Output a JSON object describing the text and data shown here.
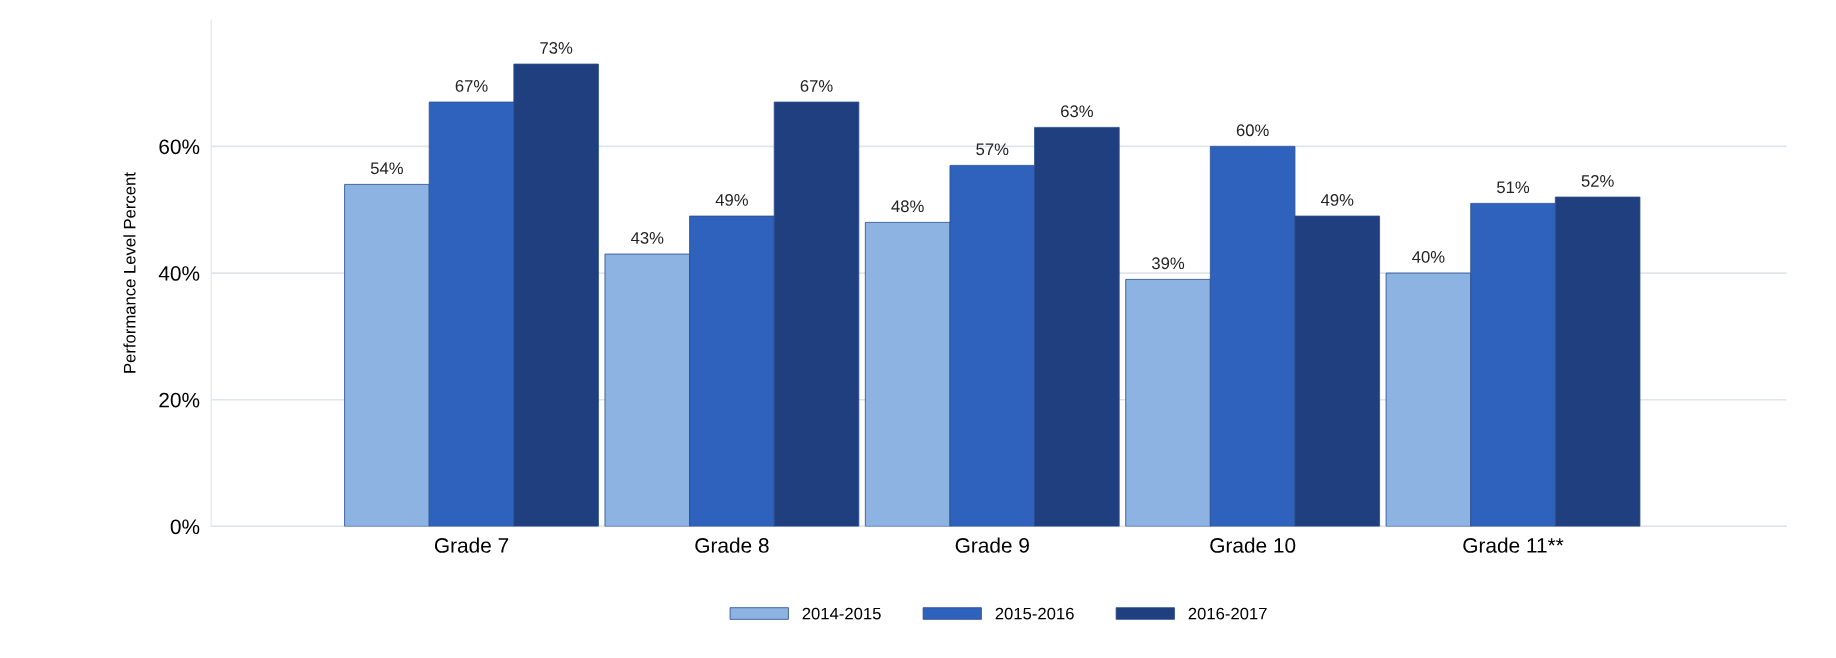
{
  "chart_data": {
    "type": "bar",
    "ylabel": "Performance Level Percent",
    "categories": [
      "Grade 7",
      "Grade 8",
      "Grade 9",
      "Grade 10",
      "Grade 11**"
    ],
    "series": [
      {
        "name": "2014-2015",
        "color": "#8db3e2",
        "values": [
          54,
          43,
          48,
          39,
          40
        ],
        "value_labels": [
          "54%",
          "43%",
          "48%",
          "39%",
          "40%"
        ]
      },
      {
        "name": "2015-2016",
        "color": "#2f62bd",
        "values": [
          67,
          49,
          57,
          60,
          51
        ],
        "value_labels": [
          "67%",
          "49%",
          "57%",
          "60%",
          "51%"
        ]
      },
      {
        "name": "2016-2017",
        "color": "#1f3f7f",
        "values": [
          73,
          67,
          63,
          49,
          52
        ],
        "value_labels": [
          "73%",
          "67%",
          "63%",
          "49%",
          "52%"
        ]
      }
    ],
    "yticks": [
      {
        "value": 0,
        "label": "0%"
      },
      {
        "value": 20,
        "label": "20%"
      },
      {
        "value": 40,
        "label": "40%"
      },
      {
        "value": 60,
        "label": "60%"
      }
    ],
    "ylim": [
      0,
      80
    ],
    "grid": "y",
    "legend": "bottom"
  }
}
